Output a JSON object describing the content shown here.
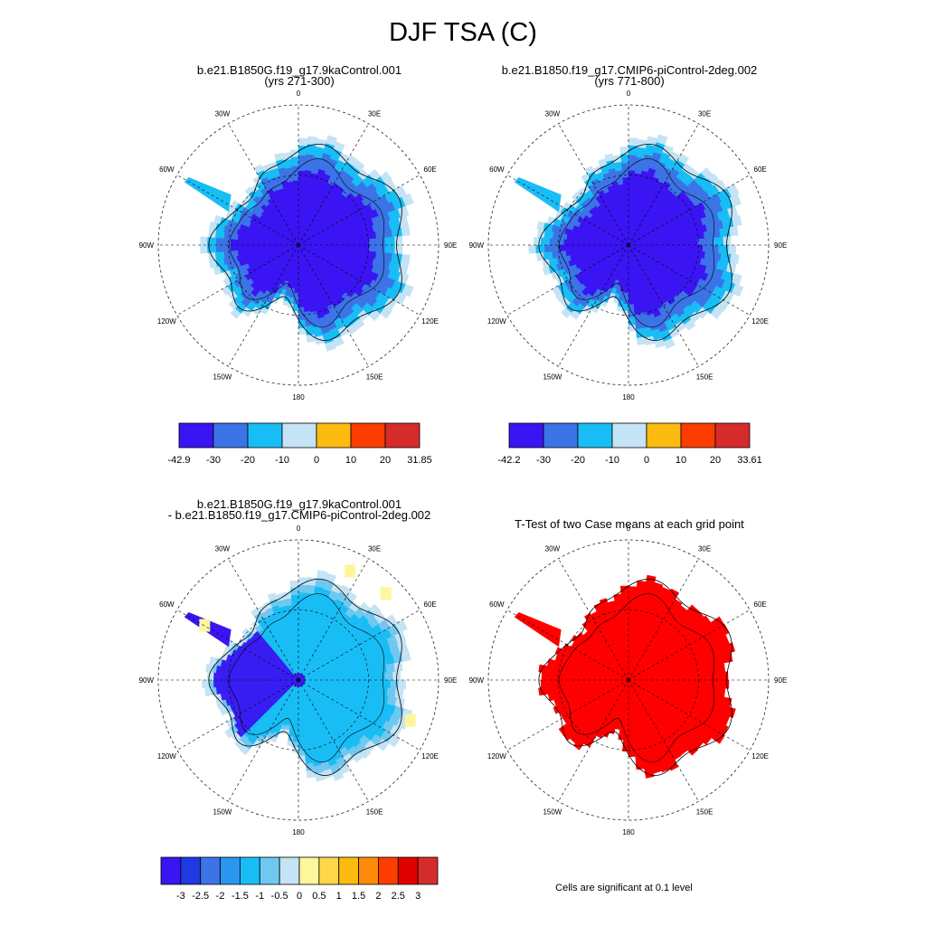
{
  "title": "DJF TSA (C)",
  "panels": [
    {
      "title1": "b.e21.B1850G.f19_g17.9kaControl.001",
      "title2": "(yrs 271-300)"
    },
    {
      "title1": "b.e21.B1850.f19_g17.CMIP6-piControl-2deg.002",
      "title2": "(yrs 771-800)"
    },
    {
      "title1": "b.e21.B1850G.f19_g17.9kaControl.001",
      "title2": "- b.e21.B1850.f19_g17.CMIP6-piControl-2deg.002"
    },
    {
      "title1": "T-Test of two Case means at each grid point",
      "title2": ""
    }
  ],
  "map_labels": {
    "lon_0": "0",
    "lon_30e": "30E",
    "lon_60e": "60E",
    "lon_90e": "90E",
    "lon_120e": "120E",
    "lon_150e": "150E",
    "lon_180": "180",
    "lon_150w": "150W",
    "lon_120w": "120W",
    "lon_90w": "90W",
    "lon_60w": "60W",
    "lon_30w": "30W"
  },
  "colorbars": {
    "case1": {
      "colors": [
        "#3a14f2",
        "#3c73e6",
        "#19bdf5",
        "#c4e3f4",
        "#fdbb10",
        "#fd3c00",
        "#d62b2b"
      ],
      "labels": [
        "-42.9",
        "-30",
        "-20",
        "-10",
        "0",
        "10",
        "20",
        "31.85"
      ]
    },
    "case2": {
      "colors": [
        "#3a14f2",
        "#3c73e6",
        "#19bdf5",
        "#c4e3f4",
        "#fdbb10",
        "#fd3c00",
        "#d62b2b"
      ],
      "labels": [
        "-42.2",
        "-30",
        "-20",
        "-10",
        "0",
        "10",
        "20",
        "33.61"
      ]
    },
    "diff": {
      "colors": [
        "#3a14f2",
        "#1f3ae0",
        "#3c73e6",
        "#2a96f0",
        "#19bdf5",
        "#6ec8f0",
        "#c4e3f4",
        "#fdf69c",
        "#fdd64a",
        "#fdbb10",
        "#fd8a08",
        "#fd3c00",
        "#e00000",
        "#d62b2b"
      ],
      "labels": [
        "-3",
        "-2.5",
        "-2",
        "-1.5",
        "-1",
        "-0.5",
        "0",
        "0.5",
        "1",
        "1.5",
        "2",
        "2.5",
        "3"
      ]
    }
  },
  "note": "Cells are significant at 0.1 level",
  "map_colors": {
    "coldest": "#3a14f2",
    "cold": "#3c73e6",
    "mid": "#19bdf5",
    "light": "#c4e3f4",
    "diff_strong": "#3a14f2",
    "diff_mid": "#19bdf5",
    "diff_weak": "#6ec8f0",
    "diff_light": "#c4e3f4",
    "diff_pos": "#fdf69c",
    "ttest": "#ff0000"
  }
}
